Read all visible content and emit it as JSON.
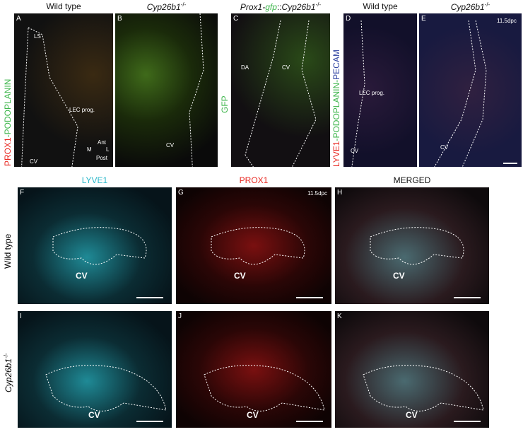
{
  "top_panels": [
    {
      "letter": "A",
      "header": [
        {
          "text": "Wild type",
          "style": "plain"
        }
      ],
      "labels": [
        "LS",
        "LEC prog.",
        "CV",
        "Ant",
        "M",
        "L",
        "Post"
      ]
    },
    {
      "letter": "B",
      "header": [
        {
          "text": "Cyp26b1",
          "style": "italic"
        },
        {
          "text": "-/-",
          "style": "sup"
        }
      ],
      "labels": [
        "CV"
      ]
    },
    {
      "letter": "C",
      "header": [
        {
          "text": "Prox1-",
          "style": "italic"
        },
        {
          "text": "gfp",
          "style": "italic green"
        },
        {
          "text": "::",
          "style": "plain"
        },
        {
          "text": "Cyp26b1",
          "style": "italic"
        },
        {
          "text": "-/-",
          "style": "sup"
        }
      ],
      "labels": [
        "DA",
        "CV"
      ]
    },
    {
      "letter": "D",
      "header": [
        {
          "text": "Wild type",
          "style": "plain"
        }
      ],
      "labels": [
        "LEC prog.",
        "CV"
      ]
    },
    {
      "letter": "E",
      "header": [
        {
          "text": "Cyp26b1",
          "style": "italic"
        },
        {
          "text": "-/-",
          "style": "sup"
        }
      ],
      "labels": [
        "11.5dpc",
        "CV"
      ]
    }
  ],
  "side_labels": [
    [
      {
        "text": "PROX1",
        "style": "red"
      },
      {
        "text": "-PODOPLANIN",
        "style": "green"
      }
    ],
    [
      {
        "text": "GFP",
        "style": "green"
      }
    ],
    [
      {
        "text": "LYVE1",
        "style": "red"
      },
      {
        "text": "-PODOPLANIN-",
        "style": "green"
      },
      {
        "text": "PECAM",
        "style": "blue"
      }
    ]
  ],
  "column_headers": [
    {
      "text": "LYVE1",
      "style": "cyan"
    },
    {
      "text": "PROX1",
      "style": "red"
    },
    {
      "text": "MERGED",
      "style": "plain"
    }
  ],
  "row_labels": [
    [
      {
        "text": "Wild type",
        "style": "plain"
      }
    ],
    [
      {
        "text": "Cyp26b1",
        "style": "italic"
      },
      {
        "text": "-/-",
        "style": "sup"
      }
    ]
  ],
  "bottom_panels": [
    {
      "letter": "F",
      "labels": [
        "CV"
      ]
    },
    {
      "letter": "G",
      "labels": [
        "11.5dpc",
        "CV"
      ]
    },
    {
      "letter": "H",
      "labels": [
        "CV"
      ]
    },
    {
      "letter": "I",
      "labels": [
        "CV"
      ]
    },
    {
      "letter": "J",
      "labels": [
        "CV"
      ]
    },
    {
      "letter": "K",
      "labels": [
        "CV"
      ]
    }
  ]
}
